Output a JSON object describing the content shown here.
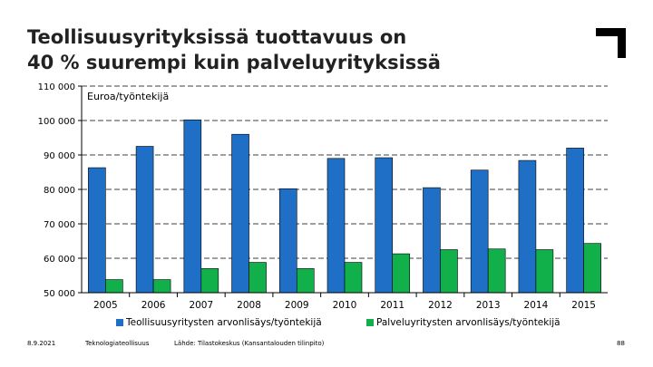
{
  "title": {
    "line1": "Teollisuusyrityksissä tuottavuus on",
    "line2": "40 % suurempi kuin palveluyrityksissä"
  },
  "chart_data": {
    "type": "bar",
    "unit_label": "Euroa/työntekijä",
    "categories": [
      "2005",
      "2006",
      "2007",
      "2008",
      "2009",
      "2010",
      "2011",
      "2012",
      "2013",
      "2014",
      "2015"
    ],
    "series": [
      {
        "name": "Teollisuusyritysten arvonlisäys/työntekijä",
        "color": "#1f6fc6",
        "values": [
          86300,
          92500,
          100200,
          96000,
          80200,
          89000,
          89200,
          80500,
          85600,
          88400,
          92000
        ]
      },
      {
        "name": "Palveluyritysten arvonlisäys/työntekijä",
        "color": "#12b04a",
        "values": [
          53800,
          53800,
          57000,
          58800,
          57000,
          58800,
          61300,
          62500,
          62700,
          62500,
          64300
        ]
      }
    ],
    "ylim": [
      50000,
      110000
    ],
    "yticks": [
      50000,
      60000,
      70000,
      80000,
      90000,
      100000,
      110000
    ],
    "ytick_labels": [
      "50 000",
      "60 000",
      "70 000",
      "80 000",
      "90 000",
      "100 000",
      "110 000"
    ],
    "grid": true,
    "legend_position": "bottom"
  },
  "footer": {
    "date": "8.9.2021",
    "organization": "Teknologiateollisuus",
    "source": "Lähde: Tilastokeskus (Kansantalouden tilinpito)",
    "page_number": "88"
  }
}
